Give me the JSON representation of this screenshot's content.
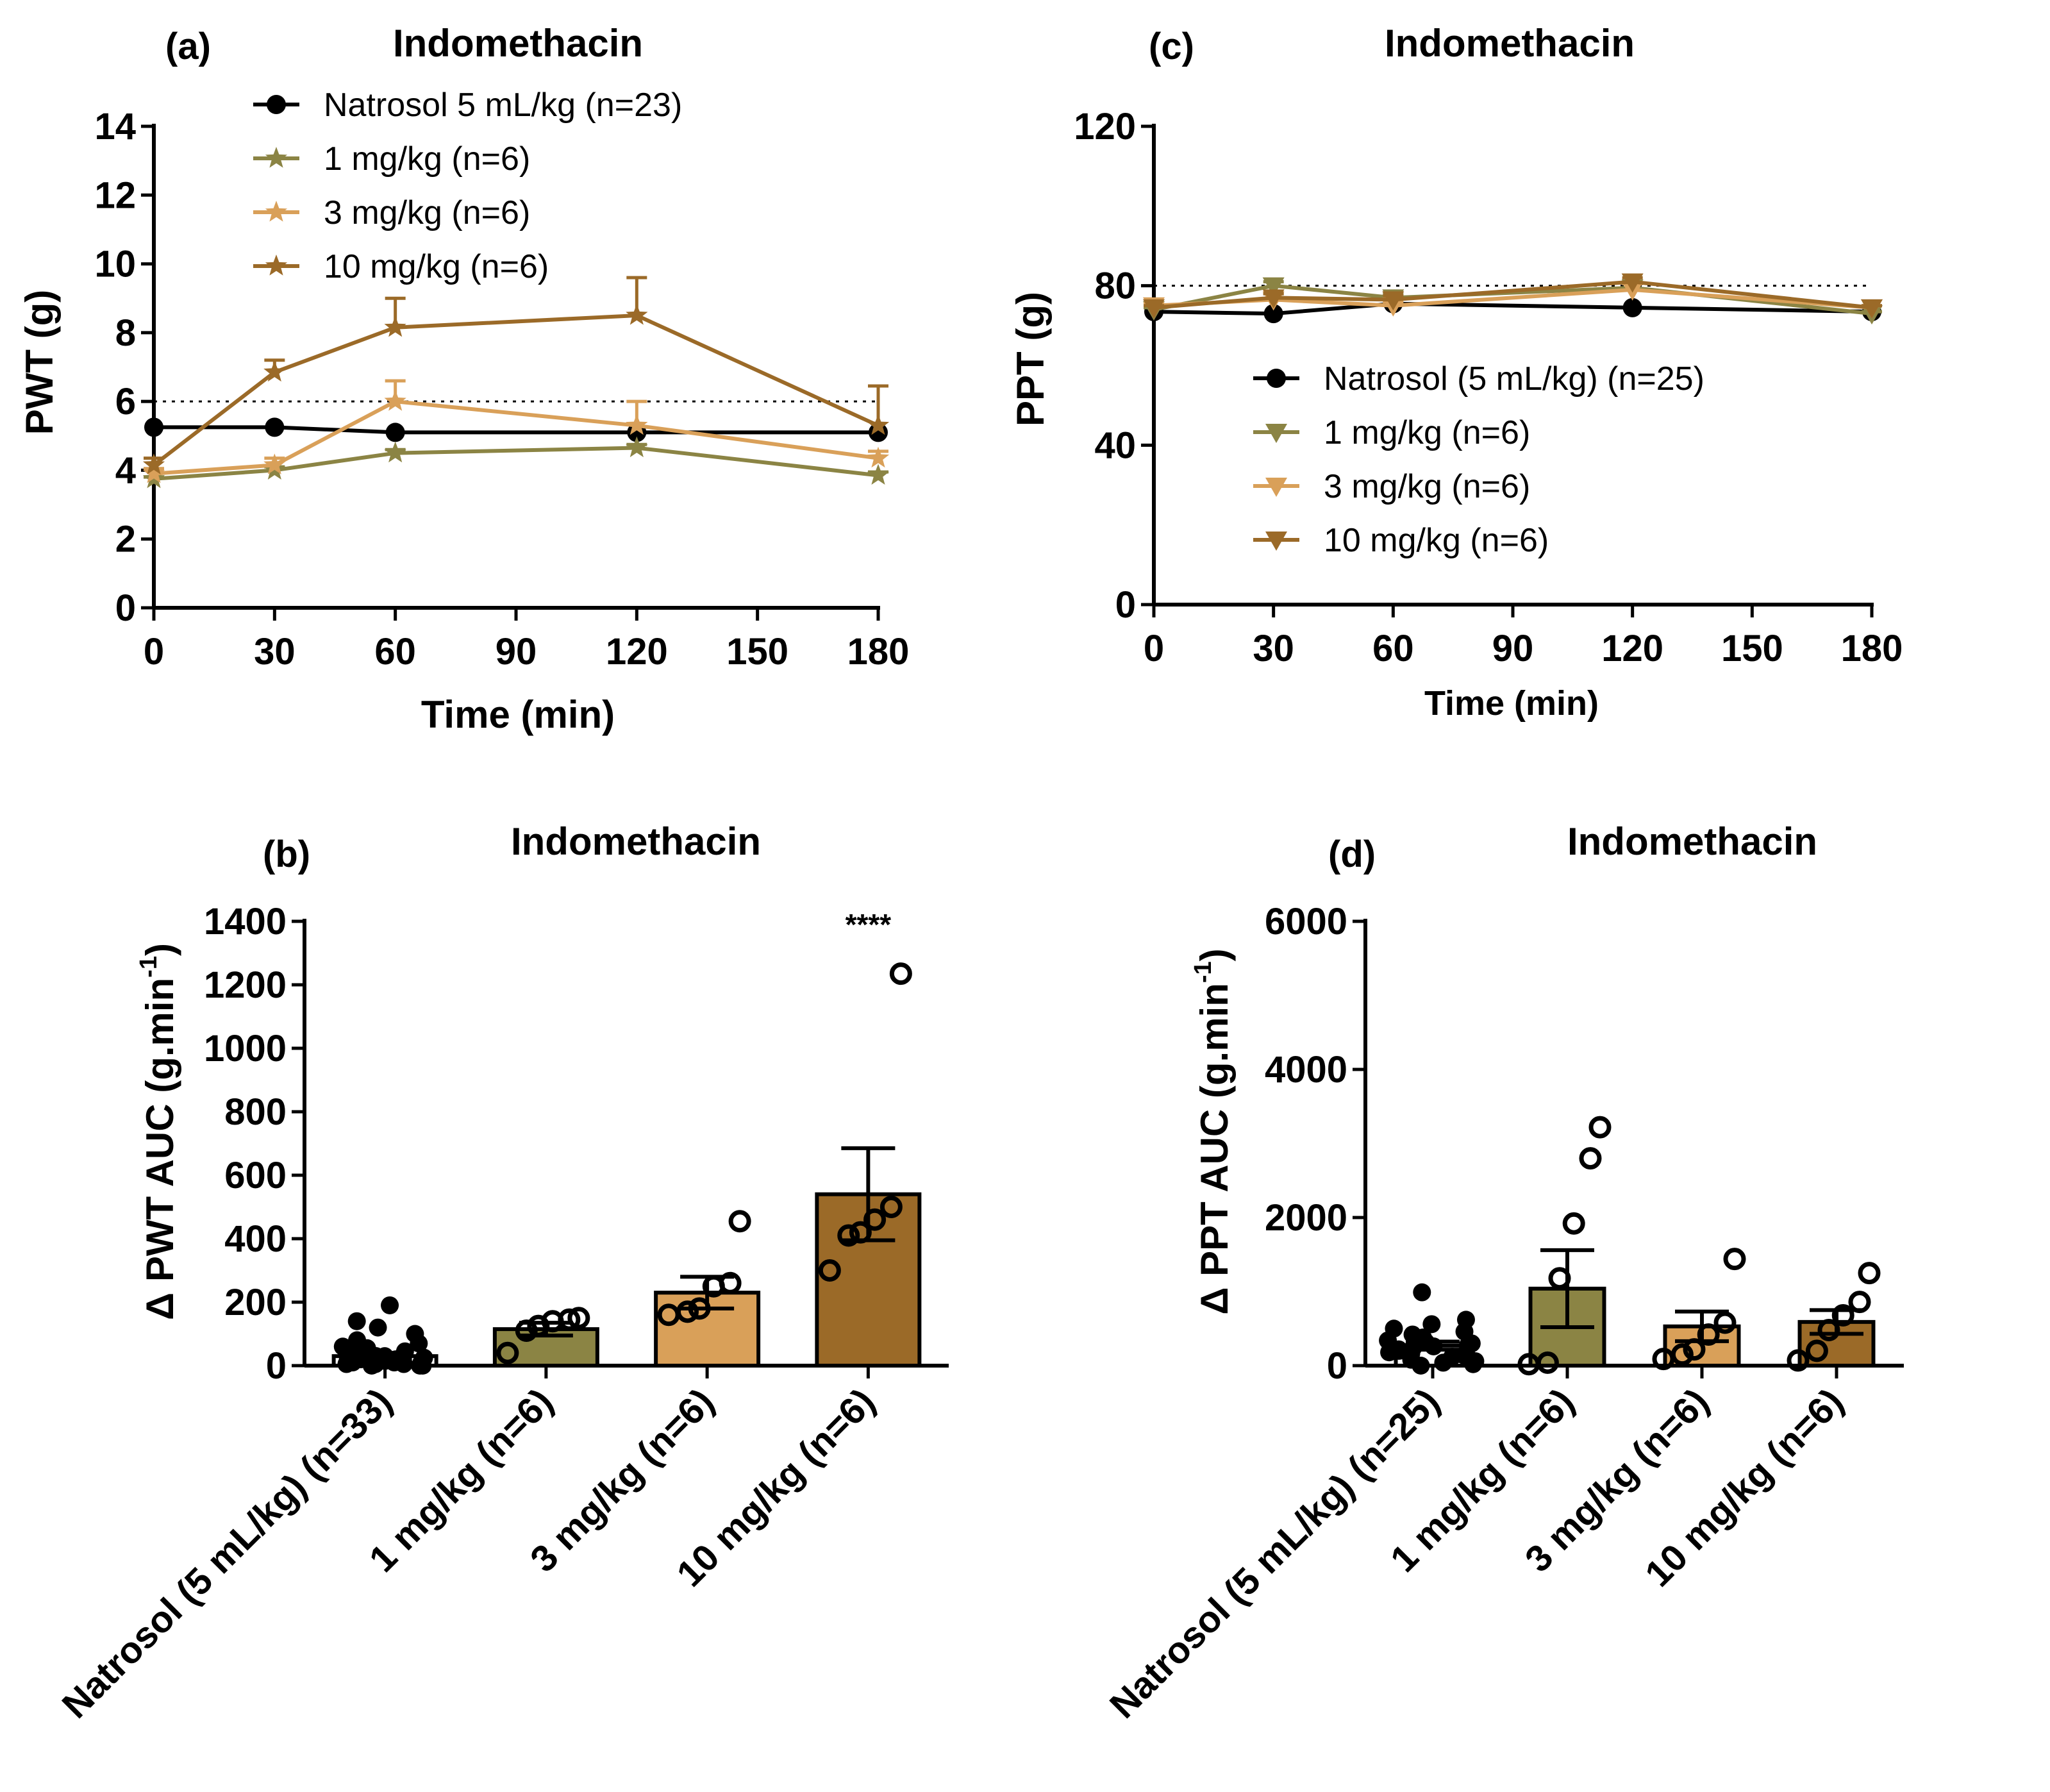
{
  "chart_data": [
    {
      "panel": "(a)",
      "type": "line",
      "title": "Indomethacin",
      "xlabel": "Time (min)",
      "ylabel": "PWT (g)",
      "x": [
        0,
        30,
        60,
        120,
        180
      ],
      "xticks": [
        0,
        30,
        60,
        90,
        120,
        150,
        180
      ],
      "xlim": [
        0,
        180
      ],
      "yticks": [
        0,
        2,
        4,
        6,
        8,
        10,
        12,
        14
      ],
      "ylim": [
        0,
        14
      ],
      "reference_line": 6,
      "legend_position": "top-center",
      "series": [
        {
          "name": "Natrosol 5 mL/kg (n=23)",
          "color": "#000000",
          "marker": "circle",
          "values": [
            5.25,
            5.25,
            5.1,
            5.1,
            5.1
          ],
          "errors": [
            0,
            0,
            0,
            0,
            0
          ]
        },
        {
          "name": "1 mg/kg (n=6)",
          "color": "#8b8444",
          "marker": "star",
          "values": [
            3.75,
            4.0,
            4.5,
            4.65,
            3.85
          ],
          "errors": [
            0.05,
            0.1,
            0.1,
            0.1,
            0.1
          ]
        },
        {
          "name": "3 mg/kg (n=6)",
          "color": "#d9a059",
          "marker": "star",
          "values": [
            3.9,
            4.15,
            6.0,
            5.3,
            4.35
          ],
          "errors": [
            0.15,
            0.2,
            0.6,
            0.7,
            0.2
          ]
        },
        {
          "name": "10 mg/kg (n=6)",
          "color": "#9b6a28",
          "marker": "star",
          "values": [
            4.15,
            6.85,
            8.15,
            8.5,
            5.3
          ],
          "errors": [
            0.2,
            0.35,
            0.85,
            1.1,
            1.15
          ]
        }
      ]
    },
    {
      "panel": "(b)",
      "type": "bar",
      "title": "Indomethacin",
      "ylabel": "Δ PWT AUC (g.min",
      "ylabel_sup": "-1",
      "ylabel_end": ")",
      "categories": [
        "Natrosol (5 mL/kg) (n=33)",
        "1 mg/kg (n=6)",
        "3 mg/kg (n=6)",
        "10 mg/kg (n=6)"
      ],
      "values": [
        30,
        115,
        230,
        540
      ],
      "errors": [
        10,
        20,
        50,
        145
      ],
      "colors": [
        "#ffffff",
        "#8b8444",
        "#d9a059",
        "#9b6a28"
      ],
      "yticks": [
        0,
        200,
        400,
        600,
        800,
        1000,
        1200,
        1400
      ],
      "ylim": [
        0,
        1400
      ],
      "significance": {
        "category_index": 3,
        "label": "****"
      },
      "points": [
        [
          0,
          0,
          5,
          5,
          10,
          10,
          15,
          15,
          20,
          20,
          25,
          25,
          30,
          30,
          30,
          35,
          40,
          45,
          50,
          55,
          60,
          70,
          80,
          100,
          120,
          140,
          190,
          0,
          5,
          10,
          20,
          25,
          30
        ],
        [
          40,
          110,
          125,
          140,
          145,
          150
        ],
        [
          160,
          170,
          180,
          250,
          260,
          455
        ],
        [
          300,
          410,
          420,
          460,
          500,
          1235
        ]
      ]
    },
    {
      "panel": "(c)",
      "type": "line",
      "title": "Indomethacin",
      "xlabel": "Time (min)",
      "ylabel": "PPT (g)",
      "x": [
        0,
        30,
        60,
        120,
        180
      ],
      "xticks": [
        0,
        30,
        60,
        90,
        120,
        150,
        180
      ],
      "xlim": [
        0,
        180
      ],
      "yticks": [
        0,
        40,
        80,
        120
      ],
      "ylim": [
        0,
        120
      ],
      "reference_line": 80,
      "legend_position": "center",
      "series": [
        {
          "name": "Natrosol (5 mL/kg) (n=25)",
          "color": "#000000",
          "marker": "circle",
          "values": [
            73.5,
            73,
            75.5,
            74.5,
            73.5
          ],
          "errors": [
            0,
            0,
            0,
            0,
            0
          ]
        },
        {
          "name": "1 mg/kg (n=6)",
          "color": "#8b8444",
          "marker": "triangle-down",
          "values": [
            74,
            80,
            77,
            79.5,
            73
          ],
          "errors": [
            0.5,
            1,
            1,
            1,
            0.5
          ]
        },
        {
          "name": "3 mg/kg (n=6)",
          "color": "#d9a059",
          "marker": "triangle-down",
          "values": [
            75,
            76.5,
            75,
            79,
            74.5
          ],
          "errors": [
            0.5,
            1.5,
            1,
            1.5,
            0.5
          ]
        },
        {
          "name": "10 mg/kg (n=6)",
          "color": "#9b6a28",
          "marker": "triangle-down",
          "values": [
            74.5,
            77,
            76.5,
            81,
            74.5
          ],
          "errors": [
            0.5,
            1,
            1,
            1,
            0.5
          ]
        }
      ]
    },
    {
      "panel": "(d)",
      "type": "bar",
      "title": "Indomethacin",
      "ylabel": "Δ PPT AUC (g.min",
      "ylabel_sup": "-1",
      "ylabel_end": ")",
      "categories": [
        "Natrosol (5 mL/kg) (n=25)",
        "1 mg/kg (n=6)",
        "3 mg/kg (n=6)",
        "10 mg/kg (n=6)"
      ],
      "values": [
        270,
        1040,
        530,
        590
      ],
      "errors": [
        55,
        520,
        200,
        160
      ],
      "colors": [
        "#ffffff",
        "#8b8444",
        "#d9a059",
        "#9b6a28"
      ],
      "yticks": [
        0,
        2000,
        4000,
        6000
      ],
      "ylim": [
        0,
        6000
      ],
      "points": [
        [
          0,
          20,
          40,
          60,
          80,
          100,
          120,
          140,
          160,
          180,
          200,
          220,
          240,
          260,
          280,
          300,
          320,
          340,
          380,
          420,
          460,
          500,
          560,
          620,
          990
        ],
        [
          20,
          40,
          1180,
          1920,
          2800,
          3220
        ],
        [
          90,
          150,
          220,
          420,
          580,
          1440
        ],
        [
          70,
          200,
          480,
          680,
          860,
          1250
        ]
      ]
    }
  ]
}
